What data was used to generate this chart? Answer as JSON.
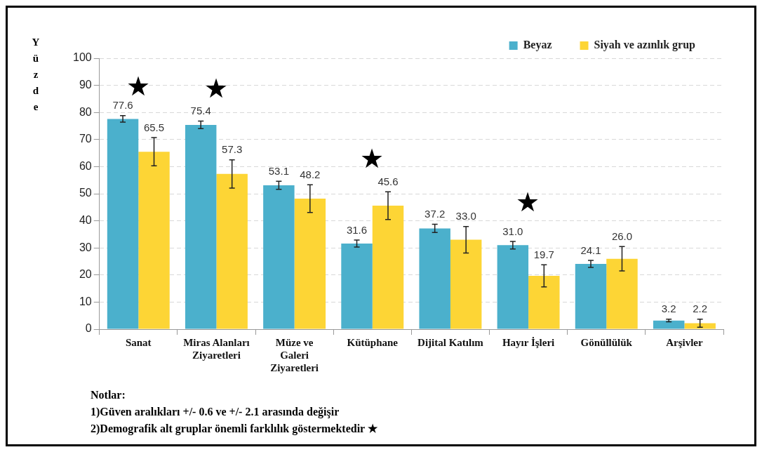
{
  "chart_data": {
    "type": "bar",
    "ylabel": "Yüzde",
    "categories": [
      "Sanat",
      "Miras Alanları Ziyaretleri",
      "Müze ve Galeri Ziyaretleri",
      "Kütüphane",
      "Dijital Katılım",
      "Hayır İşleri",
      "Gönüllülük",
      "Arşivler"
    ],
    "series": [
      {
        "name": "Beyaz",
        "color": "#4bb0cc",
        "values": [
          77.6,
          75.4,
          53.1,
          31.6,
          37.2,
          31.0,
          24.1,
          3.2
        ],
        "value_labels": [
          "77.6",
          "75.4",
          "53.1",
          "31.6",
          "37.2",
          "31.0",
          "24.1",
          "3.2"
        ],
        "errors": [
          1.2,
          1.4,
          1.5,
          1.3,
          1.5,
          1.4,
          1.3,
          0.5
        ]
      },
      {
        "name": "Siyah ve azınlık grup",
        "color": "#fdd535",
        "values": [
          65.5,
          57.3,
          48.2,
          45.6,
          33.0,
          19.7,
          26.0,
          2.2
        ],
        "value_labels": [
          "65.5",
          "57.3",
          "48.2",
          "45.6",
          "33.0",
          "19.7",
          "26.0",
          "2.2"
        ],
        "errors": [
          5.2,
          5.2,
          5.1,
          5.1,
          4.9,
          4.1,
          4.5,
          1.5
        ]
      }
    ],
    "ylim": [
      0,
      100
    ],
    "yticks": [
      0,
      10,
      20,
      30,
      40,
      50,
      60,
      70,
      80,
      90,
      100
    ],
    "grid": "y",
    "legend": "top right",
    "annotations": [
      "★",
      "★",
      "★",
      "★",
      "Notlar:",
      "1)Güven aralıkları +/- 0.6 ve +/- 2.1 arasında değişir",
      "2)Demografik alt gruplar önemli farklılık göstermektedir ★"
    ]
  }
}
